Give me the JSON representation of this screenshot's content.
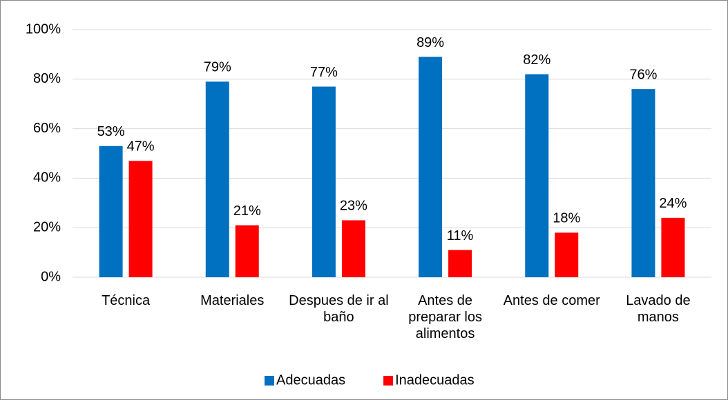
{
  "chart_data": {
    "type": "bar",
    "categories": [
      "Técnica",
      "Materiales",
      "Despues de ir al baño",
      "Antes de preparar los alimentos",
      "Antes de comer",
      "Lavado de manos"
    ],
    "series": [
      {
        "name": "Adecuadas",
        "color": "#0070c0",
        "values": [
          53,
          79,
          77,
          89,
          82,
          76
        ],
        "value_labels": [
          "53%",
          "79%",
          "77%",
          "89%",
          "82%",
          "76%"
        ]
      },
      {
        "name": "Inadecuadas",
        "color": "#ff0000",
        "values": [
          47,
          21,
          23,
          11,
          18,
          24
        ],
        "value_labels": [
          "47%",
          "21%",
          "23%",
          "11%",
          "18%",
          "24%"
        ]
      }
    ],
    "ylim": [
      0,
      100
    ],
    "yticks": [
      {
        "value": 0,
        "label": "0%"
      },
      {
        "value": 20,
        "label": "20%"
      },
      {
        "value": 40,
        "label": "40%"
      },
      {
        "value": 60,
        "label": "60%"
      },
      {
        "value": 80,
        "label": "80%"
      },
      {
        "value": 100,
        "label": "100%"
      }
    ],
    "grid": true,
    "legend": "bottom"
  }
}
